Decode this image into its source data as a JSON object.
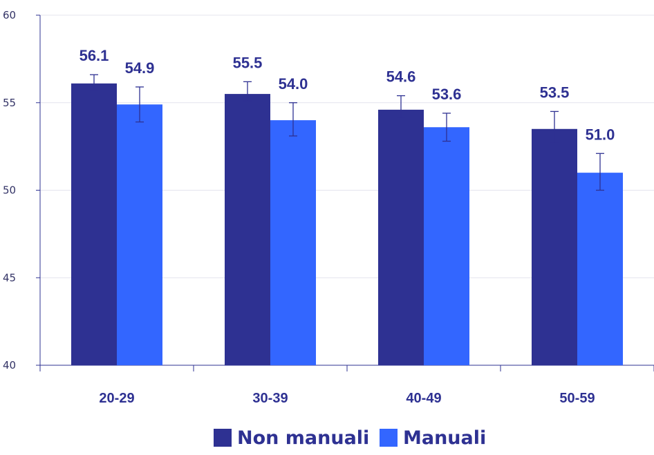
{
  "chart_data": {
    "type": "bar",
    "categories": [
      "20-29",
      "30-39",
      "40-49",
      "50-59"
    ],
    "series": [
      {
        "name": "Non manuali",
        "color": "#2e3192",
        "values": [
          56.1,
          55.5,
          54.6,
          53.5
        ],
        "labels": [
          "56.1",
          "55.5",
          "54.6",
          "53.5"
        ],
        "error_low": [
          55.7,
          55.1,
          54.1,
          52.7
        ],
        "error_high": [
          56.6,
          56.2,
          55.4,
          54.5
        ]
      },
      {
        "name": "Manuali",
        "color": "#3366ff",
        "values": [
          54.9,
          54.0,
          53.6,
          51.0
        ],
        "labels": [
          "54.9",
          "54.0",
          "53.6",
          "51.0"
        ],
        "error_low": [
          53.9,
          53.1,
          52.8,
          50.0
        ],
        "error_high": [
          55.9,
          55.0,
          54.4,
          52.1
        ]
      }
    ],
    "ylim": [
      40,
      60
    ],
    "yticks": [
      40,
      45,
      50,
      55,
      60
    ],
    "ytick_labels": [
      "40",
      "45",
      "50",
      "55",
      "60"
    ],
    "grid": true,
    "legend": "bottom-center",
    "title": "",
    "xlabel": "",
    "ylabel": ""
  }
}
